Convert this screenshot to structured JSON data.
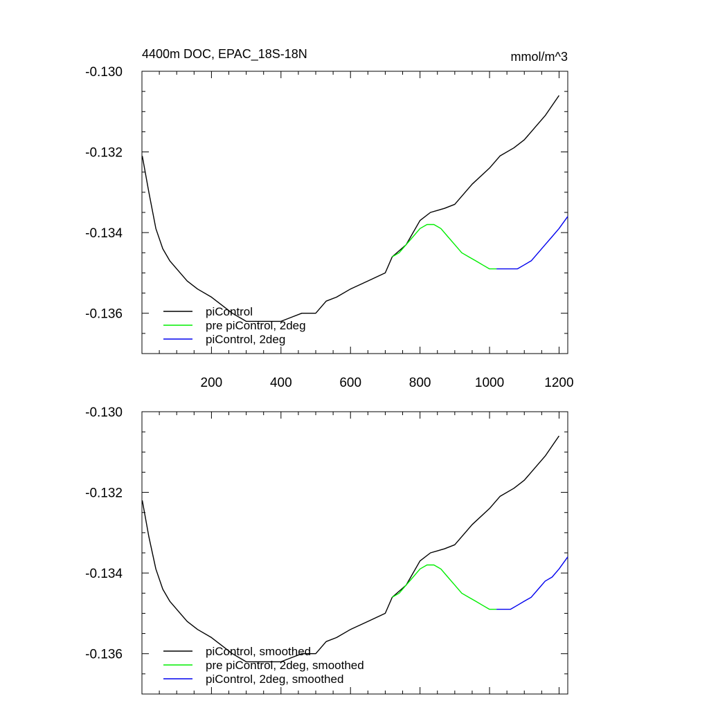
{
  "chart_data": [
    {
      "type": "line",
      "title": "4400m DOC, EPAC_18S-18N",
      "units": "mmol/m^3",
      "xlim": [
        0,
        1225
      ],
      "ylim": [
        -0.137,
        -0.13
      ],
      "x_ticks": [
        200,
        400,
        600,
        800,
        1000,
        1200
      ],
      "x_tick_labels": [
        "200",
        "400",
        "600",
        "800",
        "1000",
        "1200"
      ],
      "y_ticks": [
        -0.13,
        -0.132,
        -0.134,
        -0.136
      ],
      "y_tick_labels": [
        "-0.130",
        "-0.132",
        "-0.134",
        "-0.136"
      ],
      "grid": false,
      "legend_position": "bottom-left",
      "series": [
        {
          "name": "piControl",
          "color": "#000000",
          "x": [
            1,
            20,
            40,
            60,
            80,
            100,
            130,
            160,
            200,
            230,
            260,
            300,
            330,
            360,
            400,
            430,
            460,
            500,
            530,
            560,
            600,
            650,
            700,
            720,
            760,
            800,
            830,
            870,
            900,
            950,
            1000,
            1030,
            1070,
            1100,
            1130,
            1160,
            1200
          ],
          "y": [
            -0.1321,
            -0.133,
            -0.1339,
            -0.1344,
            -0.1347,
            -0.1349,
            -0.1352,
            -0.1354,
            -0.1356,
            -0.1358,
            -0.136,
            -0.1362,
            -0.1362,
            -0.1362,
            -0.1362,
            -0.1361,
            -0.136,
            -0.136,
            -0.1357,
            -0.1356,
            -0.1354,
            -0.1352,
            -0.135,
            -0.1346,
            -0.1343,
            -0.1337,
            -0.1335,
            -0.1334,
            -0.1333,
            -0.1328,
            -0.1324,
            -0.1321,
            -0.1319,
            -0.1317,
            -0.1314,
            -0.1311,
            -0.1306
          ]
        },
        {
          "name": "pre piControl, 2deg",
          "color": "#00ee00",
          "x": [
            720,
            740,
            760,
            780,
            800,
            820,
            840,
            860,
            880,
            900,
            920,
            940,
            960,
            980,
            1000,
            1020
          ],
          "y": [
            -0.1346,
            -0.1345,
            -0.1343,
            -0.1341,
            -0.1339,
            -0.1338,
            -0.1338,
            -0.1339,
            -0.1341,
            -0.1343,
            -0.1345,
            -0.1346,
            -0.1347,
            -0.1348,
            -0.1349,
            -0.1349
          ]
        },
        {
          "name": "piControl, 2deg",
          "color": "#0000ee",
          "x": [
            1020,
            1040,
            1060,
            1080,
            1100,
            1120,
            1140,
            1160,
            1180,
            1200,
            1225
          ],
          "y": [
            -0.1349,
            -0.1349,
            -0.1349,
            -0.1349,
            -0.1348,
            -0.1347,
            -0.1345,
            -0.1343,
            -0.1341,
            -0.1339,
            -0.1336
          ]
        }
      ]
    },
    {
      "type": "line",
      "xlim": [
        0,
        1225
      ],
      "ylim": [
        -0.137,
        -0.13
      ],
      "x_ticks": [
        200,
        400,
        600,
        800,
        1000,
        1200
      ],
      "y_ticks": [
        -0.13,
        -0.132,
        -0.134,
        -0.136
      ],
      "y_tick_labels": [
        "-0.130",
        "-0.132",
        "-0.134",
        "-0.136"
      ],
      "grid": false,
      "legend_position": "bottom-left",
      "series": [
        {
          "name": "piControl, smoothed",
          "color": "#000000",
          "x": [
            1,
            20,
            40,
            60,
            80,
            100,
            130,
            160,
            200,
            230,
            260,
            300,
            330,
            360,
            400,
            430,
            460,
            500,
            530,
            560,
            600,
            650,
            700,
            720,
            760,
            800,
            830,
            870,
            900,
            950,
            1000,
            1030,
            1070,
            1100,
            1130,
            1160,
            1200
          ],
          "y": [
            -0.1322,
            -0.1331,
            -0.1339,
            -0.1344,
            -0.1347,
            -0.1349,
            -0.1352,
            -0.1354,
            -0.1356,
            -0.1358,
            -0.136,
            -0.1362,
            -0.1362,
            -0.1362,
            -0.1362,
            -0.1361,
            -0.136,
            -0.136,
            -0.1357,
            -0.1356,
            -0.1354,
            -0.1352,
            -0.135,
            -0.1346,
            -0.1343,
            -0.1337,
            -0.1335,
            -0.1334,
            -0.1333,
            -0.1328,
            -0.1324,
            -0.1321,
            -0.1319,
            -0.1317,
            -0.1314,
            -0.1311,
            -0.1306
          ]
        },
        {
          "name": "pre piControl, 2deg, smoothed",
          "color": "#00ee00",
          "x": [
            720,
            740,
            760,
            780,
            800,
            820,
            840,
            860,
            880,
            900,
            920,
            940,
            960,
            980,
            1000,
            1020
          ],
          "y": [
            -0.1346,
            -0.1345,
            -0.1343,
            -0.1341,
            -0.1339,
            -0.1338,
            -0.1338,
            -0.1339,
            -0.1341,
            -0.1343,
            -0.1345,
            -0.1346,
            -0.1347,
            -0.1348,
            -0.1349,
            -0.1349
          ]
        },
        {
          "name": "piControl, 2deg, smoothed",
          "color": "#0000ee",
          "x": [
            1020,
            1040,
            1060,
            1080,
            1100,
            1120,
            1140,
            1160,
            1180,
            1200,
            1225
          ],
          "y": [
            -0.1349,
            -0.1349,
            -0.1349,
            -0.1348,
            -0.1347,
            -0.1346,
            -0.1344,
            -0.1342,
            -0.1341,
            -0.1339,
            -0.1336
          ]
        }
      ]
    }
  ]
}
